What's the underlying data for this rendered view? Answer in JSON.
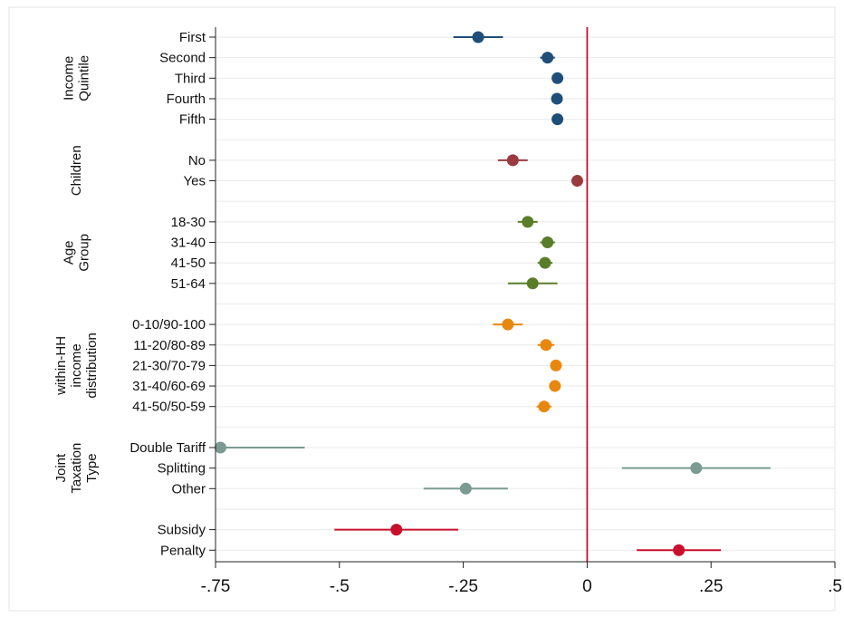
{
  "chart_data": {
    "type": "scatter",
    "orientation": "horizontal",
    "error_bars": true,
    "xlim": [
      -0.75,
      0.5
    ],
    "x_ticks": [
      -0.75,
      -0.5,
      -0.25,
      0,
      0.25,
      0.5
    ],
    "x_tick_labels": [
      "-.75",
      "-.5",
      "-.25",
      "0",
      ".25",
      ".5"
    ],
    "reference_line": {
      "x": 0,
      "color": "#c8102e"
    },
    "grid": true,
    "groups": [
      {
        "label_lines": [
          "Income",
          "Quintile"
        ],
        "color": "#1f4e79",
        "items": [
          {
            "label": "First",
            "estimate": -0.22,
            "ci": [
              -0.27,
              -0.17
            ]
          },
          {
            "label": "Second",
            "estimate": -0.08,
            "ci": [
              -0.095,
              -0.065
            ]
          },
          {
            "label": "Third",
            "estimate": -0.06,
            "ci": [
              -0.068,
              -0.052
            ]
          },
          {
            "label": "Fourth",
            "estimate": -0.061,
            "ci": [
              -0.069,
              -0.053
            ]
          },
          {
            "label": "Fifth",
            "estimate": -0.06,
            "ci": [
              -0.068,
              -0.052
            ]
          }
        ]
      },
      {
        "label_lines": [
          "Children"
        ],
        "color": "#9b3a3f",
        "items": [
          {
            "label": "No",
            "estimate": -0.15,
            "ci": [
              -0.18,
              -0.12
            ]
          },
          {
            "label": "Yes",
            "estimate": -0.02,
            "ci": [
              -0.027,
              -0.013
            ]
          }
        ]
      },
      {
        "label_lines": [
          "Age",
          "Group"
        ],
        "color": "#5a7d2a",
        "items": [
          {
            "label": "18-30",
            "estimate": -0.12,
            "ci": [
              -0.14,
              -0.1
            ]
          },
          {
            "label": "31-40",
            "estimate": -0.08,
            "ci": [
              -0.095,
              -0.065
            ]
          },
          {
            "label": "41-50",
            "estimate": -0.085,
            "ci": [
              -0.1,
              -0.07
            ]
          },
          {
            "label": "51-64",
            "estimate": -0.11,
            "ci": [
              -0.16,
              -0.06
            ]
          }
        ]
      },
      {
        "label_lines": [
          "within-HH",
          "income",
          "distribution"
        ],
        "color": "#e8870e",
        "items": [
          {
            "label": "0-10/90-100",
            "estimate": -0.16,
            "ci": [
              -0.19,
              -0.13
            ]
          },
          {
            "label": "11-20/80-89",
            "estimate": -0.083,
            "ci": [
              -0.1,
              -0.066
            ]
          },
          {
            "label": "21-30/70-79",
            "estimate": -0.063,
            "ci": [
              -0.074,
              -0.052
            ]
          },
          {
            "label": "31-40/60-69",
            "estimate": -0.065,
            "ci": [
              -0.076,
              -0.054
            ]
          },
          {
            "label": "41-50/50-59",
            "estimate": -0.087,
            "ci": [
              -0.102,
              -0.072
            ]
          }
        ]
      },
      {
        "label_lines": [
          "Joint",
          "Taxation",
          "Type"
        ],
        "color": "#7a9a92",
        "items": [
          {
            "label": "Double Tariff",
            "estimate": -0.74,
            "ci": [
              -0.75,
              -0.57
            ]
          },
          {
            "label": "Splitting",
            "estimate": 0.22,
            "ci": [
              0.07,
              0.37
            ]
          },
          {
            "label": "Other",
            "estimate": -0.245,
            "ci": [
              -0.33,
              -0.16
            ]
          }
        ]
      },
      {
        "label_lines": [],
        "color": "#c8102e",
        "items": [
          {
            "label": "Subsidy",
            "estimate": -0.385,
            "ci": [
              -0.51,
              -0.26
            ]
          },
          {
            "label": "Penalty",
            "estimate": 0.185,
            "ci": [
              0.1,
              0.27
            ]
          }
        ]
      }
    ]
  }
}
